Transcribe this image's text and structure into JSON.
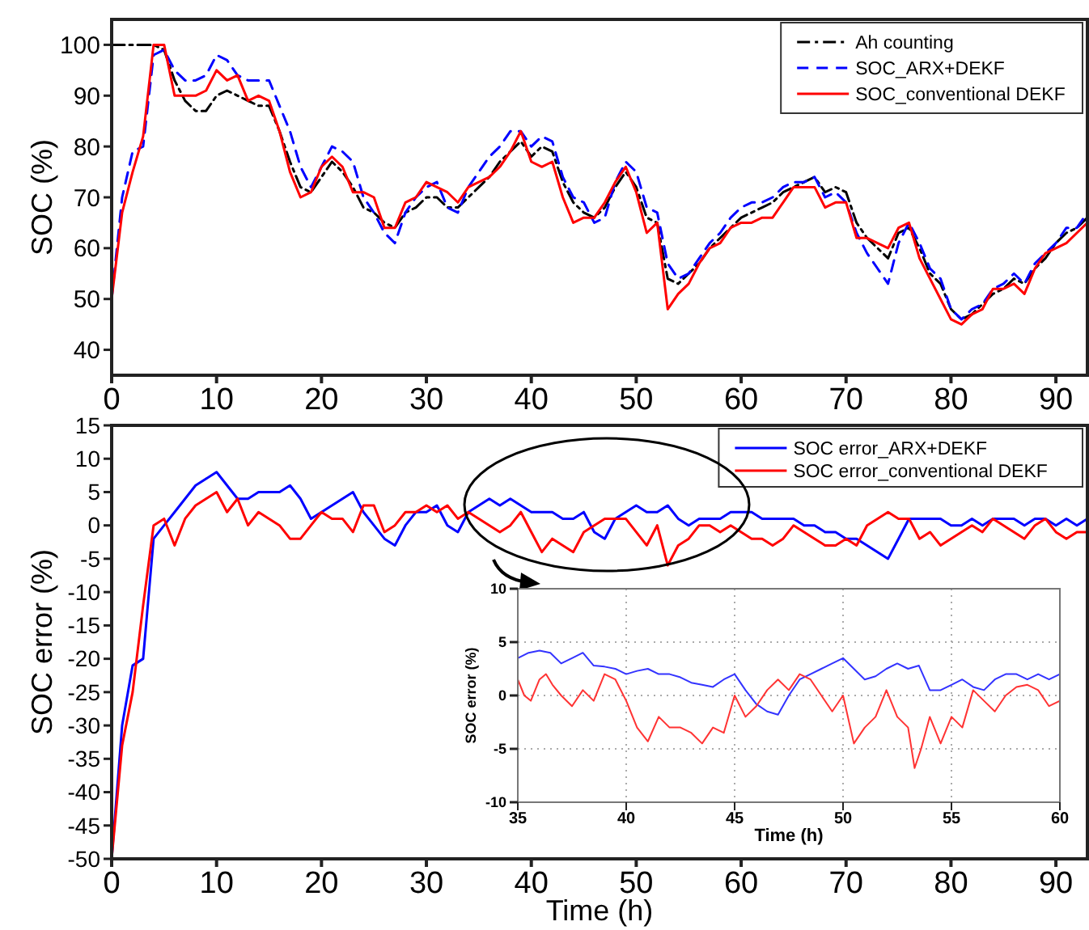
{
  "chart_data": [
    {
      "type": "line",
      "ylabel": "SOC (%)",
      "xlim": [
        0,
        93
      ],
      "xticks": [
        0,
        10,
        20,
        30,
        40,
        50,
        60,
        70,
        80,
        90
      ],
      "ylim": [
        35,
        105
      ],
      "yticks": [
        40,
        50,
        60,
        70,
        80,
        90,
        100
      ],
      "legend": "top right",
      "x": [
        0,
        1,
        2,
        3,
        4,
        5,
        6,
        7,
        8,
        9,
        10,
        11,
        12,
        13,
        14,
        15,
        16,
        17,
        18,
        19,
        20,
        21,
        22,
        23,
        24,
        25,
        26,
        27,
        28,
        29,
        30,
        31,
        32,
        33,
        34,
        35,
        36,
        37,
        38,
        39,
        40,
        41,
        42,
        43,
        44,
        45,
        46,
        47,
        48,
        49,
        50,
        51,
        52,
        53,
        54,
        55,
        56,
        57,
        58,
        59,
        60,
        61,
        62,
        63,
        64,
        65,
        66,
        67,
        68,
        69,
        70,
        71,
        72,
        73,
        74,
        75,
        76,
        77,
        78,
        79,
        80,
        81,
        82,
        83,
        84,
        85,
        86,
        87,
        88,
        89,
        90,
        91,
        92,
        93
      ],
      "series": [
        {
          "name": "Ah counting",
          "color": "#000000",
          "line_style": "dashdot",
          "values": [
            100,
            100,
            100,
            100,
            100,
            99,
            93,
            89,
            87,
            87,
            90,
            91,
            90,
            89,
            88,
            88,
            83,
            77,
            72,
            71,
            74,
            77,
            75,
            72,
            68,
            67,
            65,
            64,
            67,
            68,
            70,
            70,
            68,
            68,
            70,
            72,
            74,
            77,
            79,
            81,
            78,
            80,
            79,
            73,
            69,
            67,
            66,
            68,
            72,
            75,
            72,
            66,
            65,
            54,
            53,
            55,
            57,
            60,
            62,
            64,
            66,
            67,
            68,
            69,
            71,
            72,
            73,
            74,
            71,
            72,
            71,
            65,
            62,
            60,
            58,
            63,
            64,
            60,
            55,
            53,
            48,
            46,
            47,
            49,
            51,
            52,
            54,
            53,
            56,
            58,
            61,
            63,
            64,
            66
          ]
        },
        {
          "name": "SOC_ARX+DEKF",
          "color": "#0000ff",
          "line_style": "dashed",
          "values": [
            50,
            70,
            79,
            80,
            98,
            99,
            95,
            93,
            93,
            94,
            98,
            97,
            94,
            93,
            93,
            93,
            88,
            83,
            76,
            72,
            76,
            80,
            79,
            77,
            70,
            67,
            63,
            61,
            67,
            70,
            72,
            73,
            68,
            67,
            72,
            75,
            78,
            80,
            83,
            83,
            80,
            82,
            81,
            74,
            70,
            69,
            65,
            66,
            73,
            77,
            75,
            68,
            67,
            57,
            54,
            55,
            58,
            61,
            63,
            66,
            68,
            69,
            69,
            70,
            72,
            73,
            73,
            74,
            70,
            71,
            69,
            63,
            59,
            56,
            53,
            61,
            65,
            61,
            56,
            54,
            48,
            46,
            48,
            49,
            52,
            53,
            55,
            53,
            57,
            59,
            61,
            64,
            64,
            67
          ]
        },
        {
          "name": "SOC_conventional DEKF",
          "color": "#ff0000",
          "line_style": "solid",
          "values": [
            50,
            67,
            75,
            82,
            100,
            100,
            90,
            90,
            90,
            91,
            95,
            93,
            94,
            89,
            90,
            89,
            83,
            75,
            70,
            71,
            76,
            78,
            76,
            71,
            71,
            70,
            64,
            64,
            69,
            70,
            73,
            72,
            71,
            69,
            72,
            73,
            74,
            76,
            79,
            83,
            77,
            76,
            77,
            70,
            65,
            66,
            66,
            69,
            73,
            76,
            71,
            63,
            65,
            48,
            51,
            53,
            57,
            60,
            61,
            64,
            65,
            65,
            66,
            66,
            69,
            72,
            72,
            72,
            68,
            69,
            69,
            62,
            62,
            61,
            60,
            64,
            65,
            58,
            54,
            50,
            46,
            45,
            47,
            48,
            52,
            52,
            53,
            51,
            56,
            59,
            60,
            61,
            63,
            65
          ]
        }
      ]
    },
    {
      "type": "line",
      "xlabel": "Time (h)",
      "ylabel": "SOC error (%)",
      "xlim": [
        0,
        93
      ],
      "xticks": [
        0,
        10,
        20,
        30,
        40,
        50,
        60,
        70,
        80,
        90
      ],
      "ylim": [
        -50,
        15
      ],
      "yticks": [
        -50,
        -45,
        -40,
        -35,
        -30,
        -25,
        -20,
        -15,
        -10,
        -5,
        0,
        5,
        10,
        15
      ],
      "legend": "top right",
      "x": [
        0,
        1,
        2,
        3,
        4,
        5,
        6,
        7,
        8,
        9,
        10,
        11,
        12,
        13,
        14,
        15,
        16,
        17,
        18,
        19,
        20,
        21,
        22,
        23,
        24,
        25,
        26,
        27,
        28,
        29,
        30,
        31,
        32,
        33,
        34,
        35,
        36,
        37,
        38,
        39,
        40,
        41,
        42,
        43,
        44,
        45,
        46,
        47,
        48,
        49,
        50,
        51,
        52,
        53,
        54,
        55,
        56,
        57,
        58,
        59,
        60,
        61,
        62,
        63,
        64,
        65,
        66,
        67,
        68,
        69,
        70,
        71,
        72,
        73,
        74,
        75,
        76,
        77,
        78,
        79,
        80,
        81,
        82,
        83,
        84,
        85,
        86,
        87,
        88,
        89,
        90,
        91,
        92,
        93
      ],
      "series": [
        {
          "name": "SOC error_ARX+DEKF",
          "color": "#0000ff",
          "line_style": "solid",
          "values": [
            -50,
            -30,
            -21,
            -20,
            -2,
            0,
            2,
            4,
            6,
            7,
            8,
            6,
            4,
            4,
            5,
            5,
            5,
            6,
            4,
            1,
            2,
            3,
            4,
            5,
            2,
            0,
            -2,
            -3,
            0,
            2,
            2,
            3,
            0,
            -1,
            2,
            3,
            4,
            3,
            4,
            3,
            2,
            2,
            2,
            1,
            1,
            2,
            -1,
            -2,
            1,
            2,
            3,
            2,
            2,
            3,
            1,
            0,
            1,
            1,
            1,
            2,
            2,
            2,
            1,
            1,
            1,
            1,
            0,
            0,
            -1,
            -1,
            -2,
            -2,
            -3,
            -4,
            -5,
            -2,
            1,
            1,
            1,
            1,
            0,
            0,
            1,
            0,
            1,
            1,
            1,
            0,
            1,
            1,
            0,
            1,
            0,
            1
          ]
        },
        {
          "name": "SOC error_conventional DEKF",
          "color": "#ff0000",
          "line_style": "solid",
          "values": [
            -50,
            -33,
            -25,
            -12,
            0,
            1,
            -3,
            1,
            3,
            4,
            5,
            2,
            4,
            0,
            2,
            1,
            0,
            -2,
            -2,
            0,
            2,
            1,
            1,
            -1,
            3,
            3,
            -1,
            0,
            2,
            2,
            3,
            2,
            3,
            1,
            2,
            1,
            0,
            -1,
            0,
            2,
            -1,
            -4,
            -2,
            -3,
            -4,
            -1,
            0,
            1,
            1,
            1,
            -1,
            -3,
            0,
            -6,
            -3,
            -2,
            0,
            0,
            -1,
            0,
            -1,
            -2,
            -2,
            -3,
            -2,
            0,
            -1,
            -2,
            -3,
            -3,
            -2,
            -3,
            0,
            1,
            2,
            1,
            1,
            -2,
            -1,
            -3,
            -2,
            -1,
            0,
            -1,
            1,
            0,
            -1,
            -2,
            0,
            1,
            -1,
            -2,
            -1,
            -1
          ]
        }
      ]
    },
    {
      "type": "line",
      "xlabel": "Time (h)",
      "ylabel": "SOC error (%)",
      "xlim": [
        35,
        60
      ],
      "xticks": [
        35,
        40,
        45,
        50,
        55,
        60
      ],
      "ylim": [
        -10,
        10
      ],
      "yticks": [
        -10,
        -5,
        0,
        5,
        10
      ],
      "grid": true,
      "series": [
        {
          "color": "#3333ff",
          "line_style": "solid",
          "x": [
            35,
            35.5,
            36,
            36.5,
            37,
            37.5,
            38,
            38.5,
            39,
            39.5,
            40,
            40.5,
            41,
            41.5,
            42,
            42.5,
            43,
            43.5,
            44,
            44.5,
            45,
            45.5,
            46,
            46.5,
            47,
            47.5,
            48,
            48.5,
            49,
            49.5,
            50,
            50.5,
            51,
            51.5,
            52,
            52.5,
            53,
            53.5,
            54,
            54.5,
            55,
            55.5,
            56,
            56.5,
            57,
            57.5,
            58,
            58.5,
            59,
            59.5,
            60
          ],
          "values": [
            3.5,
            4,
            4.2,
            4,
            3,
            3.5,
            4,
            2.8,
            2.7,
            2.5,
            2,
            2.3,
            2.5,
            2,
            2,
            1.7,
            1.2,
            1,
            0.8,
            1.5,
            2,
            0.5,
            -0.8,
            -1.5,
            -1.8,
            0,
            1.5,
            2,
            2.5,
            3,
            3.5,
            2.5,
            1.5,
            1.8,
            2.5,
            3,
            2.5,
            2.8,
            0.5,
            0.5,
            1,
            1.5,
            0.8,
            0.5,
            1.5,
            2,
            2,
            1.5,
            2,
            1.5,
            2
          ]
        },
        {
          "color": "#ff3333",
          "line_style": "solid",
          "x": [
            35,
            35.3,
            35.6,
            36,
            36.3,
            36.6,
            37,
            37.5,
            38,
            38.5,
            39,
            39.5,
            40,
            40.5,
            41,
            41.5,
            42,
            42.5,
            43,
            43.5,
            44,
            44.5,
            45,
            45.5,
            46,
            46.5,
            47,
            47.5,
            48,
            48.5,
            49,
            49.5,
            50,
            50.5,
            51,
            51.5,
            52,
            52.5,
            53,
            53.3,
            53.6,
            54,
            54.5,
            55,
            55.5,
            56,
            56.5,
            57,
            57.5,
            58,
            58.5,
            59,
            59.5,
            60
          ],
          "values": [
            1.5,
            0,
            -0.5,
            1.5,
            2,
            1,
            0,
            -1,
            0.5,
            -0.5,
            2,
            1.5,
            -0.5,
            -3,
            -4.3,
            -2,
            -3,
            -3,
            -3.5,
            -4.5,
            -3,
            -3.5,
            0,
            -2,
            -1,
            0.5,
            1.5,
            0.5,
            2,
            1.5,
            0,
            -1.5,
            0,
            -4.5,
            -3,
            -2,
            0.5,
            -2,
            -3,
            -6.8,
            -5,
            -2,
            -4.5,
            -2,
            -3,
            0.5,
            -0.5,
            -1.5,
            0,
            0.8,
            1,
            0.5,
            -1,
            -0.5
          ]
        }
      ]
    }
  ]
}
